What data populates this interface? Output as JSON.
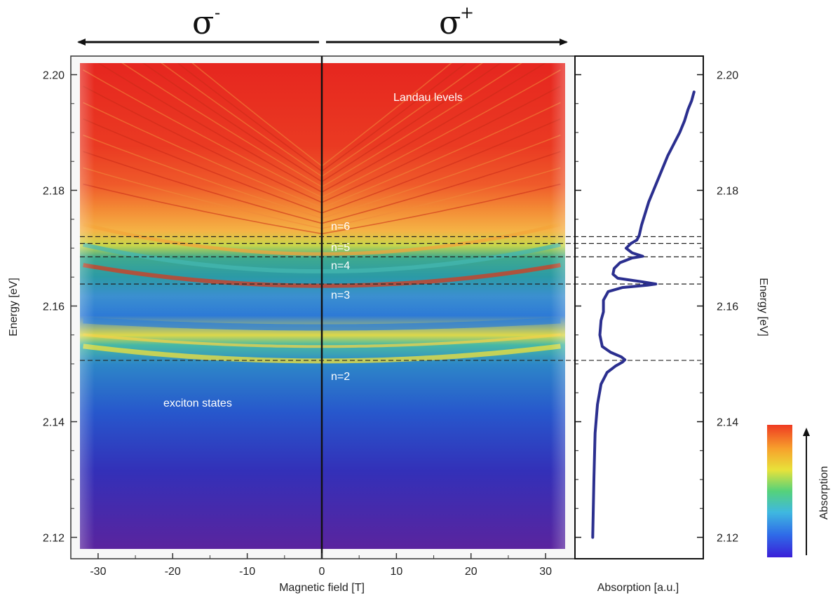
{
  "chart_data": [
    {
      "type": "heatmap",
      "xlabel": "Magnetic field [T]",
      "ylabel": "Energy [eV]",
      "xlim": [
        -33,
        33
      ],
      "ylim": [
        2.118,
        2.202
      ],
      "x_ticks": [
        "-30",
        "-20",
        "-10",
        "0",
        "10",
        "20",
        "30"
      ],
      "x_tick_values": [
        -30,
        -20,
        -10,
        0,
        10,
        20,
        30
      ],
      "y_ticks": [
        "2.12",
        "2.14",
        "2.16",
        "2.18",
        "2.20"
      ],
      "y_tick_values": [
        2.12,
        2.14,
        2.16,
        2.18,
        2.2
      ],
      "polarization_left": "σ",
      "polarization_left_sup": "-",
      "polarization_right": "σ",
      "polarization_right_sup": "+",
      "annotations": {
        "landau": "Landau levels",
        "exciton": "exciton states",
        "n2": "n=2",
        "n3": "n=3",
        "n4": "n=4",
        "n5": "n=5",
        "n6": "n=6"
      },
      "reference_lines_energy": [
        2.172,
        2.1708,
        2.1685,
        2.1638,
        2.1506
      ],
      "field_range_T": [
        -32,
        32
      ],
      "features": [
        {
          "energy_at_zero_field": 2.1505,
          "curvature": 2.5e-06,
          "kind": "exciton"
        },
        {
          "energy_at_zero_field": 2.153,
          "curvature": 2e-06,
          "kind": "exciton"
        },
        {
          "energy_at_zero_field": 2.1563,
          "curvature": 1.2e-06,
          "kind": "exciton"
        },
        {
          "energy_at_zero_field": 2.1635,
          "curvature": 3.5e-06,
          "kind": "exciton"
        },
        {
          "energy_at_zero_field": 2.166,
          "curvature": 4.5e-06,
          "kind": "exciton"
        },
        {
          "energy_at_zero_field": 2.169,
          "curvature": 5e-06,
          "kind": "exciton"
        }
      ]
    },
    {
      "type": "line",
      "xlabel": "Absorption [a.u.]",
      "ylabel": "Energy [eV]",
      "ylim": [
        2.118,
        2.202
      ],
      "xlim": [
        0,
        1
      ],
      "y_ticks": [
        "2.12",
        "2.14",
        "2.16",
        "2.18",
        "2.20"
      ],
      "y_tick_values": [
        2.12,
        2.14,
        2.16,
        2.18,
        2.2
      ],
      "series": [
        {
          "color": "#2b2f8f",
          "points": [
            [
              0.09,
              2.12
            ],
            [
              0.1,
              2.13
            ],
            [
              0.11,
              2.138
            ],
            [
              0.13,
              2.143
            ],
            [
              0.16,
              2.1465
            ],
            [
              0.21,
              2.1485
            ],
            [
              0.28,
              2.1496
            ],
            [
              0.34,
              2.1503
            ],
            [
              0.36,
              2.1507
            ],
            [
              0.33,
              2.1512
            ],
            [
              0.24,
              2.152
            ],
            [
              0.17,
              2.153
            ],
            [
              0.15,
              2.155
            ],
            [
              0.16,
              2.1575
            ],
            [
              0.18,
              2.159
            ],
            [
              0.18,
              2.161
            ],
            [
              0.22,
              2.1625
            ],
            [
              0.34,
              2.1632
            ],
            [
              0.55,
              2.1636
            ],
            [
              0.62,
              2.1638
            ],
            [
              0.5,
              2.1642
            ],
            [
              0.3,
              2.1648
            ],
            [
              0.26,
              2.1655
            ],
            [
              0.27,
              2.1665
            ],
            [
              0.32,
              2.1675
            ],
            [
              0.42,
              2.1683
            ],
            [
              0.51,
              2.1686
            ],
            [
              0.42,
              2.1692
            ],
            [
              0.37,
              2.17
            ],
            [
              0.41,
              2.1708
            ],
            [
              0.46,
              2.1714
            ],
            [
              0.48,
              2.1722
            ],
            [
              0.5,
              2.174
            ],
            [
              0.53,
              2.176
            ],
            [
              0.56,
              2.178
            ],
            [
              0.6,
              2.18
            ],
            [
              0.64,
              2.182
            ],
            [
              0.68,
              2.184
            ],
            [
              0.72,
              2.186
            ],
            [
              0.77,
              2.188
            ],
            [
              0.82,
              2.19
            ],
            [
              0.86,
              2.192
            ],
            [
              0.89,
              2.194
            ],
            [
              0.92,
              2.1955
            ],
            [
              0.94,
              2.197
            ]
          ]
        }
      ]
    }
  ],
  "colorbar": {
    "label": "Absorption",
    "colors": [
      "#3a1fd8",
      "#2f6be8",
      "#3fb8e0",
      "#55d27a",
      "#e8e23a",
      "#f7a12c",
      "#ef3b22"
    ]
  },
  "colors": {
    "curve": "#2b2f8f",
    "dashed": "#222222"
  }
}
